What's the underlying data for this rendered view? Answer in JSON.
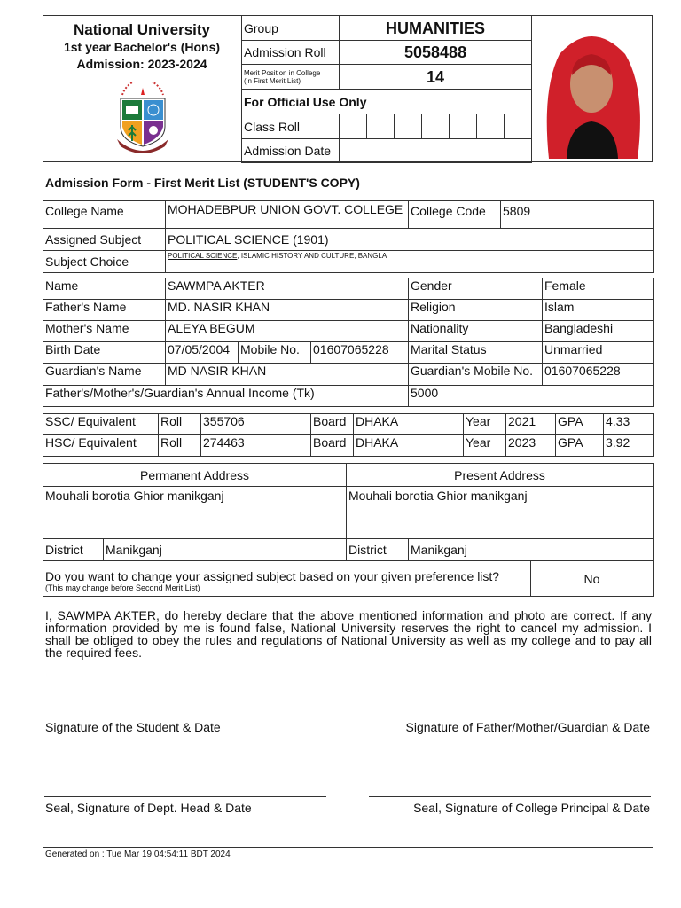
{
  "header": {
    "university": "National University",
    "program": "1st year Bachelor's (Hons)",
    "session": "Admission: 2023-2024",
    "group_label": "Group",
    "group_value": "HUMANITIES",
    "admission_roll_label": "Admission Roll",
    "admission_roll_value": "5058488",
    "merit_label_1": "Merit Position in College",
    "merit_label_2": "(in First Merit List)",
    "merit_value": "14",
    "official_use": "For Official Use Only",
    "class_roll_label": "Class Roll",
    "admission_date_label": "Admission Date"
  },
  "form_title": "Admission Form - First Merit List (STUDENT'S COPY)",
  "college": {
    "name_label": "College Name",
    "name_value": "MOHADEBPUR UNION GOVT. COLLEGE",
    "code_label": "College Code",
    "code_value": "5809",
    "assigned_label": "Assigned Subject",
    "assigned_value": "POLITICAL SCIENCE (1901)",
    "choice_label": "Subject Choice",
    "choice_first": "POLITICAL SCIENCE",
    "choice_rest": ", ISLAMIC HISTORY AND CULTURE, BANGLA"
  },
  "personal": {
    "name_label": "Name",
    "name_value": "SAWMPA AKTER",
    "gender_label": "Gender",
    "gender_value": "Female",
    "father_label": "Father's Name",
    "father_value": "MD. NASIR KHAN",
    "religion_label": "Religion",
    "religion_value": "Islam",
    "mother_label": "Mother's Name",
    "mother_value": "ALEYA BEGUM",
    "nationality_label": "Nationality",
    "nationality_value": "Bangladeshi",
    "birth_label": "Birth Date",
    "birth_value": "07/05/2004",
    "mobile_label": "Mobile No.",
    "mobile_value": "01607065228",
    "marital_label": "Marital Status",
    "marital_value": "Unmarried",
    "guardian_label": "Guardian's Name",
    "guardian_value": "MD  NASIR KHAN",
    "guardian_mobile_label": "Guardian's Mobile No.",
    "guardian_mobile_value": "01607065228",
    "income_label": "Father's/Mother's/Guardian's Annual Income (Tk)",
    "income_value": "5000"
  },
  "exams": [
    {
      "exam": "SSC/ Equivalent",
      "roll_label": "Roll",
      "roll": "355706",
      "board_label": "Board",
      "board": "DHAKA",
      "year_label": "Year",
      "year": "2021",
      "gpa_label": "GPA",
      "gpa": "4.33"
    },
    {
      "exam": "HSC/ Equivalent",
      "roll_label": "Roll",
      "roll": "274463",
      "board_label": "Board",
      "board": "DHAKA",
      "year_label": "Year",
      "year": "2023",
      "gpa_label": "GPA",
      "gpa": "3.92"
    }
  ],
  "address": {
    "permanent_label": "Permanent Address",
    "present_label": "Present Address",
    "permanent_value": "Mouhali borotia Ghior manikganj",
    "present_value": "Mouhali borotia Ghior manikganj",
    "district_label": "District",
    "permanent_district": "Manikganj",
    "present_district": "Manikganj",
    "question": "Do you want to change your assigned subject based on your given preference list?",
    "question_note": "(This may change before Second Merit List)",
    "answer": "No"
  },
  "declaration": "I, SAWMPA AKTER, do hereby declare that the above mentioned information and photo are correct. If any information provided by me is found false, National University reserves the right to cancel my admission. I shall be obliged to obey the rules and regulations of National University as well as my college and to pay all the required fees.",
  "signatures": {
    "student": "Signature of the Student & Date",
    "guardian": "Signature of Father/Mother/Guardian & Date",
    "dept_head": "Seal, Signature of Dept. Head & Date",
    "principal": "Seal, Signature of College Principal & Date"
  },
  "footer": "Generated on : Tue Mar 19 04:54:11 BDT 2024"
}
